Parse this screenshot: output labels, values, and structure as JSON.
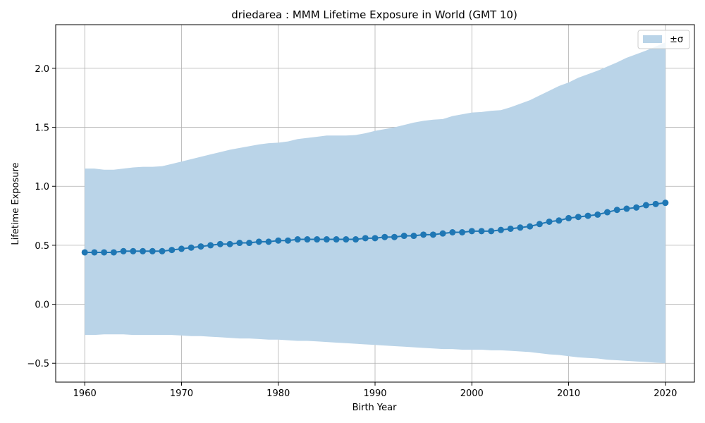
{
  "chart_data": {
    "type": "line",
    "title": "driedarea : MMM Lifetime Exposure in World (GMT 10)",
    "xlabel": "Birth Year",
    "ylabel": "Lifetime Exposure",
    "xlim": [
      1957,
      2023
    ],
    "ylim": [
      -0.66,
      2.37
    ],
    "xticks": [
      1960,
      1970,
      1980,
      1990,
      2000,
      2010,
      2020
    ],
    "yticks": [
      -0.5,
      0.0,
      0.5,
      1.0,
      1.5,
      2.0
    ],
    "ytick_labels": [
      "−0.5",
      "0.0",
      "0.5",
      "1.0",
      "1.5",
      "2.0"
    ],
    "grid": true,
    "legend_placement": "top-right",
    "legend_label": "±σ",
    "colors": {
      "line": "#1f77b4",
      "band": "#bad4e8"
    },
    "x": [
      1960,
      1961,
      1962,
      1963,
      1964,
      1965,
      1966,
      1967,
      1968,
      1969,
      1970,
      1971,
      1972,
      1973,
      1974,
      1975,
      1976,
      1977,
      1978,
      1979,
      1980,
      1981,
      1982,
      1983,
      1984,
      1985,
      1986,
      1987,
      1988,
      1989,
      1990,
      1991,
      1992,
      1993,
      1994,
      1995,
      1996,
      1997,
      1998,
      1999,
      2000,
      2001,
      2002,
      2003,
      2004,
      2005,
      2006,
      2007,
      2008,
      2009,
      2010,
      2011,
      2012,
      2013,
      2014,
      2015,
      2016,
      2017,
      2018,
      2019,
      2020
    ],
    "mean": [
      0.44,
      0.44,
      0.44,
      0.44,
      0.45,
      0.45,
      0.45,
      0.45,
      0.45,
      0.46,
      0.47,
      0.48,
      0.49,
      0.5,
      0.51,
      0.51,
      0.52,
      0.52,
      0.53,
      0.53,
      0.54,
      0.54,
      0.55,
      0.55,
      0.55,
      0.55,
      0.55,
      0.55,
      0.55,
      0.56,
      0.56,
      0.57,
      0.57,
      0.58,
      0.58,
      0.59,
      0.59,
      0.6,
      0.61,
      0.61,
      0.62,
      0.62,
      0.62,
      0.63,
      0.64,
      0.65,
      0.66,
      0.68,
      0.7,
      0.71,
      0.73,
      0.74,
      0.75,
      0.76,
      0.78,
      0.8,
      0.81,
      0.82,
      0.84,
      0.85,
      0.86
    ],
    "upper": [
      1.15,
      1.15,
      1.14,
      1.14,
      1.15,
      1.16,
      1.165,
      1.165,
      1.17,
      1.19,
      1.21,
      1.23,
      1.25,
      1.27,
      1.29,
      1.31,
      1.325,
      1.34,
      1.355,
      1.365,
      1.37,
      1.38,
      1.4,
      1.41,
      1.42,
      1.43,
      1.43,
      1.43,
      1.435,
      1.45,
      1.47,
      1.485,
      1.5,
      1.52,
      1.54,
      1.555,
      1.565,
      1.57,
      1.595,
      1.61,
      1.625,
      1.63,
      1.64,
      1.645,
      1.67,
      1.7,
      1.73,
      1.77,
      1.81,
      1.85,
      1.88,
      1.92,
      1.95,
      1.98,
      2.015,
      2.05,
      2.09,
      2.12,
      2.15,
      2.185,
      2.22
    ],
    "lower": [
      -0.26,
      -0.26,
      -0.255,
      -0.255,
      -0.255,
      -0.26,
      -0.26,
      -0.26,
      -0.26,
      -0.26,
      -0.265,
      -0.27,
      -0.27,
      -0.275,
      -0.28,
      -0.285,
      -0.29,
      -0.29,
      -0.295,
      -0.3,
      -0.3,
      -0.305,
      -0.31,
      -0.31,
      -0.315,
      -0.32,
      -0.325,
      -0.33,
      -0.335,
      -0.34,
      -0.345,
      -0.35,
      -0.355,
      -0.36,
      -0.365,
      -0.37,
      -0.375,
      -0.38,
      -0.38,
      -0.385,
      -0.385,
      -0.385,
      -0.39,
      -0.39,
      -0.395,
      -0.4,
      -0.405,
      -0.415,
      -0.425,
      -0.43,
      -0.44,
      -0.45,
      -0.455,
      -0.46,
      -0.47,
      -0.475,
      -0.48,
      -0.485,
      -0.49,
      -0.495,
      -0.5
    ]
  }
}
